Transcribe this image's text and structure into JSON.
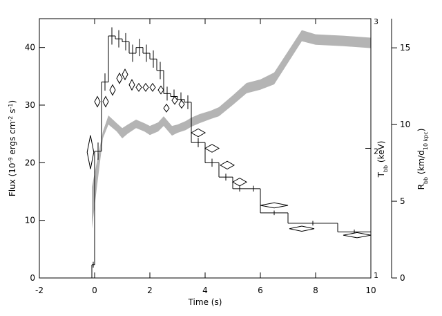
{
  "chart_data": {
    "type": "multi-axis",
    "xlabel": "Time (s)",
    "ylabel": [
      {
        "text": "Flux (10"
      },
      {
        "text": "-9",
        "sup": true
      },
      {
        "text": " ergs cm"
      },
      {
        "text": "-2",
        "sup": true
      },
      {
        "text": " s"
      },
      {
        "text": "-1",
        "sup": true
      },
      {
        "text": ")"
      }
    ],
    "y2label": [
      {
        "text": "T"
      },
      {
        "text": "bb",
        "sub": true
      },
      {
        "text": " (keV)"
      }
    ],
    "y3label": [
      {
        "text": "R"
      },
      {
        "text": "bb",
        "sub": true
      },
      {
        "text": " (km/d"
      },
      {
        "text": "10 kpc",
        "sub": true
      },
      {
        "text": ")"
      }
    ],
    "xlim": [
      -2,
      10
    ],
    "xticks": [
      -2,
      0,
      2,
      4,
      6,
      8,
      10
    ],
    "ylim": [
      0,
      45
    ],
    "yticks": [
      0,
      10,
      20,
      30,
      40
    ],
    "y2lim": [
      1,
      3
    ],
    "y2ticks": [
      1,
      2,
      3
    ],
    "y3lim": [
      0,
      16.9
    ],
    "y3ticks": [
      0,
      5,
      10,
      15
    ],
    "flux": {
      "color": "#000000",
      "bins": [
        -0.1,
        0,
        0.25,
        0.5,
        0.75,
        1,
        1.25,
        1.5,
        1.75,
        2,
        2.25,
        2.5,
        2.75,
        3,
        3.25,
        3.5,
        4,
        4.5,
        5,
        5.5,
        6,
        7,
        8.8,
        10
      ],
      "values": [
        2.3,
        22,
        34,
        42,
        41.5,
        41,
        39,
        40,
        39,
        38,
        36,
        32,
        31.5,
        31,
        30.5,
        23.5,
        20,
        17.5,
        15.5,
        15.5,
        11.3,
        9.5,
        8
      ],
      "errors": [
        0.5,
        1.5,
        1.5,
        1.5,
        1.5,
        1.5,
        1.5,
        1.5,
        1.5,
        1.5,
        1.5,
        1.2,
        1.2,
        1.2,
        1.2,
        0.8,
        0.7,
        0.6,
        0.5,
        0.5,
        0.4,
        0.4,
        0.4
      ]
    },
    "temperature": {
      "color": "#000000",
      "axis": "y2",
      "x": [
        -0.15,
        0.1,
        0.4,
        0.65,
        0.9,
        1.1,
        1.35,
        1.6,
        1.85,
        2.1,
        2.4,
        2.6,
        2.9,
        3.15,
        3.75,
        4.25,
        4.8,
        5.25,
        6.5,
        7.5,
        9.5
      ],
      "values": [
        1.97,
        2.36,
        2.36,
        2.45,
        2.54,
        2.57,
        2.49,
        2.47,
        2.47,
        2.47,
        2.45,
        2.31,
        2.37,
        2.34,
        2.12,
        2.0,
        1.87,
        1.74,
        1.56,
        1.38,
        1.33
      ],
      "xerr": [
        0.12,
        0.1,
        0.1,
        0.1,
        0.1,
        0.1,
        0.1,
        0.1,
        0.1,
        0.1,
        0.1,
        0.1,
        0.1,
        0.1,
        0.25,
        0.25,
        0.25,
        0.25,
        0.5,
        0.45,
        0.5
      ],
      "yerr": [
        0.13,
        0.04,
        0.04,
        0.04,
        0.04,
        0.04,
        0.04,
        0.03,
        0.03,
        0.03,
        0.03,
        0.03,
        0.03,
        0.03,
        0.03,
        0.03,
        0.03,
        0.03,
        0.02,
        0.02,
        0.02
      ]
    },
    "radius": {
      "color": "#b4b4b4",
      "axis": "y3",
      "x": [
        -0.1,
        0.3,
        0.5,
        0.8,
        1.0,
        1.2,
        1.5,
        1.8,
        2.0,
        2.3,
        2.5,
        2.8,
        3.0,
        3.3,
        3.5,
        3.8,
        4.2,
        4.5,
        5.0,
        5.5,
        6.0,
        6.5,
        7.5,
        8.0,
        9.0,
        10
      ],
      "upper": [
        5.93,
        9.55,
        10.59,
        10.09,
        9.77,
        10.0,
        10.32,
        10.09,
        9.91,
        10.14,
        10.54,
        9.91,
        10.0,
        10.23,
        10.45,
        10.68,
        10.9,
        11.13,
        11.9,
        12.71,
        12.94,
        13.39,
        16.15,
        15.88,
        15.79,
        15.66
      ],
      "lower": [
        3.21,
        9.1,
        10.0,
        9.55,
        9.1,
        9.41,
        9.77,
        9.55,
        9.32,
        9.55,
        9.91,
        9.28,
        9.46,
        9.64,
        9.86,
        10.09,
        10.36,
        10.54,
        11.27,
        12.04,
        12.27,
        12.62,
        15.43,
        15.2,
        15.11,
        14.98
      ]
    }
  }
}
